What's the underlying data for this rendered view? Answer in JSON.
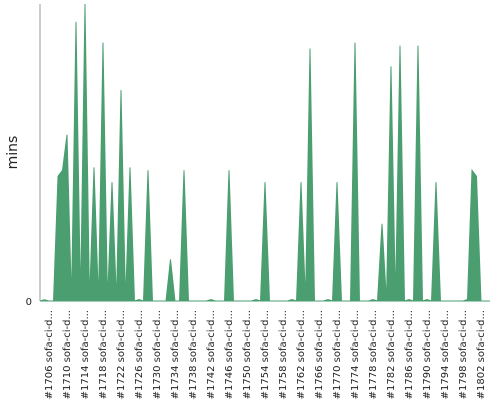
{
  "chart_data": {
    "type": "area",
    "ylabel": "mins",
    "y_tick_labels": [
      "0"
    ],
    "x_tick_labels": [
      "#1706 sofa-ci-d...",
      "#1710 sofa-ci-d...",
      "#1714 sofa-ci-d...",
      "#1718 sofa-ci-d...",
      "#1722 sofa-ci-d...",
      "#1726 sofa-ci-d...",
      "#1730 sofa-ci-d...",
      "#1734 sofa-ci-d...",
      "#1738 sofa-ci-d...",
      "#1742 sofa-ci-d...",
      "#1746 sofa-ci-d...",
      "#1750 sofa-ci-d...",
      "#1754 sofa-ci-d...",
      "#1758 sofa-ci-d...",
      "#1762 sofa-ci-d...",
      "#1766 sofa-ci-d...",
      "#1770 sofa-ci-d...",
      "#1774 sofa-ci-d...",
      "#1778 sofa-ci-d...",
      "#1782 sofa-ci-d...",
      "#1786 sofa-ci-d...",
      "#1790 sofa-ci-d...",
      "#1794 sofa-ci-d...",
      "#1798 sofa-ci-d...",
      "#1802 sofa-ci-d..."
    ],
    "x_build_numbers": [
      1704,
      1705,
      1706,
      1707,
      1708,
      1709,
      1710,
      1711,
      1712,
      1713,
      1714,
      1715,
      1716,
      1717,
      1718,
      1719,
      1720,
      1721,
      1722,
      1723,
      1724,
      1725,
      1726,
      1727,
      1728,
      1729,
      1730,
      1731,
      1732,
      1733,
      1734,
      1735,
      1736,
      1737,
      1738,
      1739,
      1740,
      1741,
      1742,
      1743,
      1744,
      1745,
      1746,
      1747,
      1748,
      1749,
      1750,
      1751,
      1752,
      1753,
      1754,
      1755,
      1756,
      1757,
      1758,
      1759,
      1760,
      1761,
      1762,
      1763,
      1764,
      1765,
      1766,
      1767,
      1768,
      1769,
      1770,
      1771,
      1772,
      1773,
      1774,
      1775,
      1776,
      1777,
      1778,
      1779,
      1780,
      1781,
      1782,
      1783,
      1784,
      1785,
      1786,
      1787,
      1788,
      1789,
      1790,
      1791,
      1792,
      1793,
      1794,
      1795,
      1796,
      1797,
      1798,
      1799,
      1800,
      1801,
      1802,
      1803,
      1804
    ],
    "series": [
      {
        "values": [
          0,
          0.4,
          0,
          0,
          42,
          44,
          56,
          0,
          94,
          0,
          100,
          0,
          45,
          0,
          87,
          0,
          40,
          0,
          71,
          0,
          45,
          0,
          0.5,
          0,
          44,
          0,
          0,
          0,
          0,
          14,
          0,
          0,
          44,
          0,
          0,
          0,
          0,
          0,
          0.5,
          0,
          0,
          0,
          44,
          0,
          0,
          0,
          0,
          0,
          0.5,
          0,
          40,
          0,
          0,
          0,
          0,
          0,
          0.5,
          0,
          40,
          0,
          85,
          0,
          0,
          0,
          0.5,
          0,
          40,
          0,
          0,
          0,
          87,
          0,
          0,
          0,
          0.5,
          0,
          26,
          0,
          79,
          0,
          86,
          0,
          0.5,
          0,
          86,
          0,
          0.5,
          0,
          40,
          0,
          0,
          0,
          0,
          0,
          0,
          0.5,
          44,
          42,
          0,
          0,
          0,
          0,
          0.5
        ]
      }
    ],
    "ylim": [
      0,
      100
    ],
    "colors": {
      "area": "#4a9e70",
      "axis": "#999999",
      "grid": "#dddddd",
      "text": "#222222"
    }
  }
}
